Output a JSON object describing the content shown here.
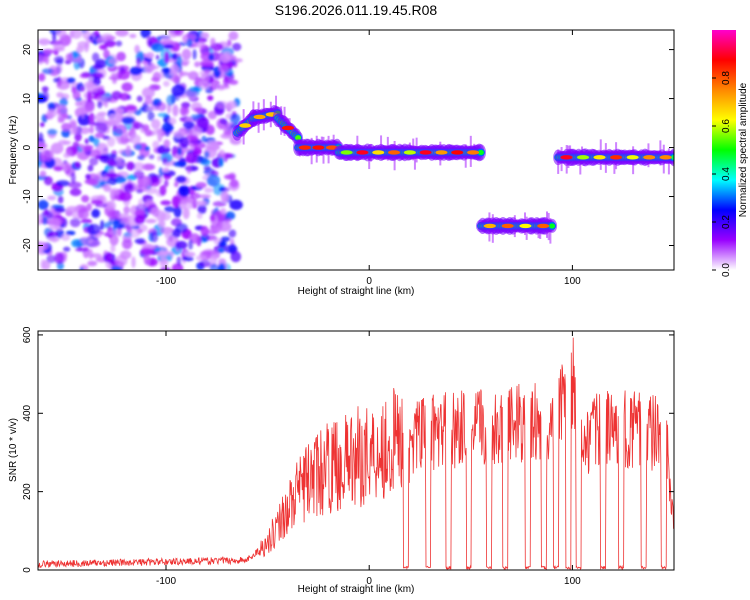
{
  "chart_data": [
    {
      "type": "heatmap",
      "title": "S196.2026.011.19.45.R08",
      "xlabel": "Height of straight line (km)",
      "ylabel": "Frequency (Hz)",
      "xlim": [
        -163,
        150
      ],
      "ylim": [
        -25,
        24
      ],
      "xticks": [
        -100,
        0,
        100
      ],
      "yticks": [
        -20,
        -10,
        0,
        10,
        20
      ],
      "noise_region_x": [
        -163,
        -65
      ],
      "segments": [
        {
          "x": [
            -65,
            -57
          ],
          "freq": [
            3,
            6
          ]
        },
        {
          "x": [
            -57,
            -45
          ],
          "freq": [
            6,
            7
          ]
        },
        {
          "x": [
            -45,
            -35
          ],
          "freq": [
            6,
            2
          ]
        },
        {
          "x": [
            -35,
            -15
          ],
          "freq": [
            0,
            0
          ]
        },
        {
          "x": [
            -15,
            55
          ],
          "freq": [
            -1,
            -1
          ]
        },
        {
          "x": [
            55,
            90
          ],
          "freq": [
            -16,
            -16
          ]
        },
        {
          "x": [
            93,
            150
          ],
          "freq": [
            -2,
            -2
          ]
        }
      ],
      "colorbar": {
        "label": "Normalized spectral amplitude",
        "range": [
          0,
          1
        ],
        "ticks": [
          "0.0",
          "0.2",
          "0.4",
          "0.6",
          "0.8"
        ],
        "tick_values": [
          0,
          0.2,
          0.4,
          0.6,
          0.8
        ],
        "top_value": 0.98,
        "colors": [
          "#ffffff",
          "#9900ff",
          "#0000ff",
          "#00ffff",
          "#00ff00",
          "#ffff00",
          "#ff8800",
          "#ff0000",
          "#ff00cc"
        ]
      }
    },
    {
      "type": "line",
      "xlabel": "Height of straight line (km)",
      "ylabel": "SNR (10 * v/v)",
      "xlim": [
        -163,
        150
      ],
      "ylim": [
        0,
        610
      ],
      "xticks": [
        -100,
        0,
        100
      ],
      "yticks": [
        0,
        200,
        400,
        600
      ],
      "series": [
        {
          "name": "SNR",
          "color": "#ee3333",
          "x": [
            -163,
            -60,
            -50,
            -40,
            -30,
            -20,
            -10,
            0,
            10,
            20,
            30,
            40,
            50,
            60,
            70,
            80,
            90,
            95,
            100,
            105,
            110,
            120,
            130,
            140,
            146,
            150
          ],
          "y": [
            15,
            25,
            70,
            160,
            230,
            260,
            280,
            300,
            320,
            340,
            350,
            360,
            360,
            370,
            370,
            380,
            360,
            430,
            480,
            300,
            350,
            360,
            360,
            350,
            340,
            110
          ],
          "dropouts": [
            18,
            29,
            39,
            49,
            59,
            67,
            78,
            86,
            92,
            98,
            103,
            115,
            124,
            135,
            145
          ]
        }
      ]
    }
  ]
}
